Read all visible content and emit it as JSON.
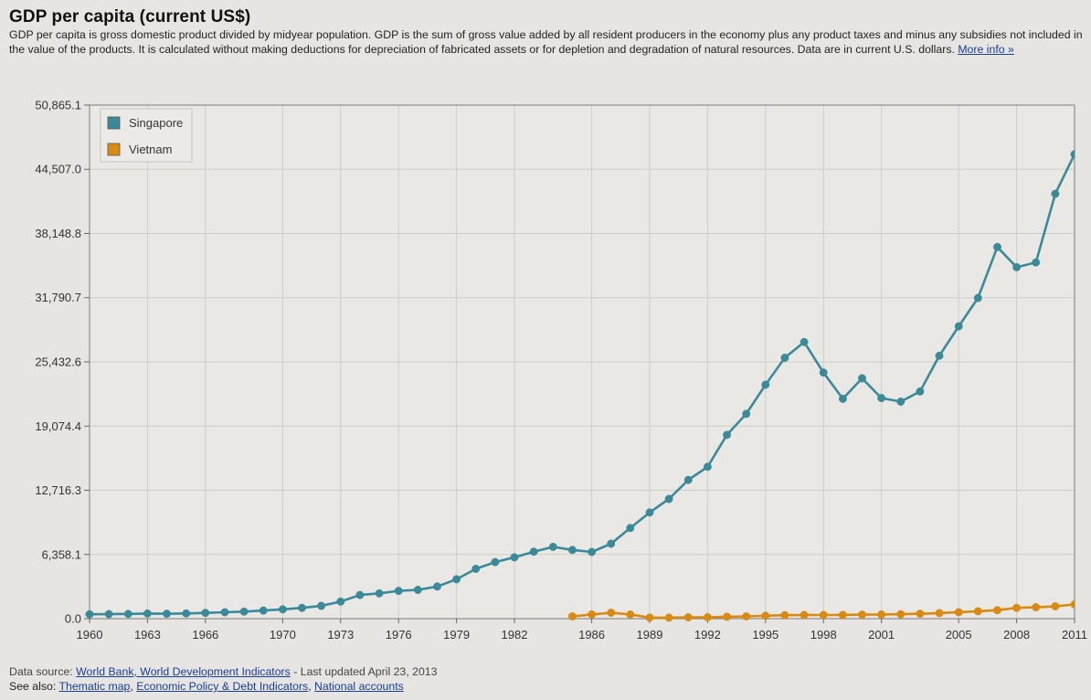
{
  "page": {
    "title": "GDP per capita (current US$)",
    "description": "GDP per capita is gross domestic product divided by midyear population. GDP is the sum of gross value added by all resident producers in the economy plus any product taxes and minus any subsidies not included in the value of the products. It is calculated without making deductions for depreciation of fabricated assets or for depletion and degradation of natural resources. Data are in current U.S. dollars.",
    "more_info_label": "More info »"
  },
  "footer": {
    "source_label": "Data source:",
    "source_link": "World Bank, World Development Indicators",
    "updated_text": " - Last updated April 23, 2013",
    "see_also_label": "See also:",
    "see_also_links": [
      "Thematic map",
      "Economic Policy & Debt Indicators",
      "National accounts"
    ]
  },
  "colors": {
    "background": "#e6e5e1",
    "plot_background": "#e9e8e4",
    "grid": "#cfcdc8",
    "singapore": "#3b8a99",
    "vietnam": "#d88a11"
  },
  "chart_data": {
    "type": "line",
    "title": "GDP per capita (current US$)",
    "xlabel": "",
    "ylabel": "",
    "ylim": [
      0,
      50865.1
    ],
    "xlim": [
      1960,
      2011
    ],
    "y_ticks": [
      "0.0",
      "6,358.1",
      "12,716.3",
      "19,074.4",
      "25,432.6",
      "31,790.7",
      "38,148.8",
      "44,507.0",
      "50,865.1"
    ],
    "y_tick_values": [
      0,
      6358.1,
      12716.3,
      19074.4,
      25432.6,
      31790.7,
      38148.8,
      44507.0,
      50865.1
    ],
    "x_ticks": [
      "1960",
      "1963",
      "1966",
      "1970",
      "1973",
      "1976",
      "1979",
      "1982",
      "1986",
      "1989",
      "1992",
      "1995",
      "1998",
      "2001",
      "2005",
      "2008",
      "2011"
    ],
    "x_tick_values": [
      1960,
      1963,
      1966,
      1970,
      1973,
      1976,
      1979,
      1982,
      1986,
      1989,
      1992,
      1995,
      1998,
      2001,
      2005,
      2008,
      2011
    ],
    "grid": true,
    "legend_position": "top-left",
    "series": [
      {
        "name": "Singapore",
        "color": "#3b8a99",
        "start_year": 1960,
        "values": [
          430,
          450,
          470,
          510,
          490,
          520,
          570,
          630,
          700,
          810,
          920,
          1070,
          1270,
          1690,
          2340,
          2510,
          2750,
          2850,
          3190,
          3900,
          4930,
          5600,
          6070,
          6630,
          7110,
          6810,
          6610,
          7420,
          8980,
          10520,
          11860,
          13740,
          15040,
          18200,
          20280,
          23170,
          25840,
          27400,
          24370,
          21780,
          23800,
          21850,
          21500,
          22500,
          26040,
          28950,
          31760,
          36810,
          34810,
          35280,
          42080,
          46000
        ]
      },
      {
        "name": "Vietnam",
        "color": "#d88a11",
        "start_year": 1985,
        "values": [
          230,
          420,
          590,
          420,
          100,
          100,
          140,
          140,
          190,
          230,
          290,
          340,
          360,
          360,
          370,
          400,
          410,
          440,
          490,
          550,
          640,
          730,
          840,
          1070,
          1130,
          1220,
          1410
        ]
      }
    ]
  }
}
